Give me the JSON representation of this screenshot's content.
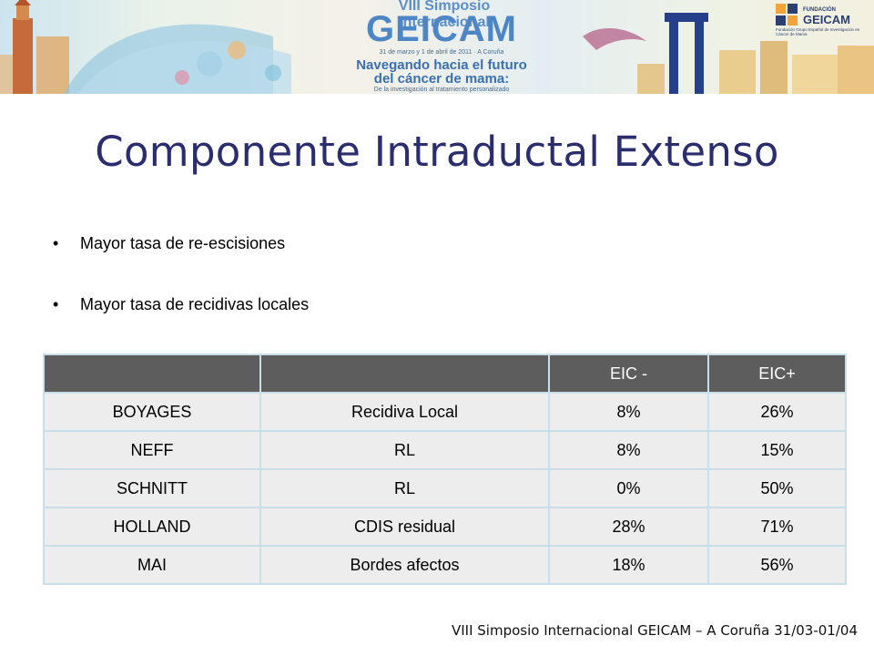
{
  "banner": {
    "sup": "VIII Simposio Internacional",
    "main": "GEICAM",
    "dates": "31 de marzo y 1 de abril de 2011 · A Coruña",
    "sub1": "Navegando hacia el futuro",
    "sub2": "del cáncer de mama:",
    "sub3": "De la investigación al tratamiento personalizado",
    "logo_top": "FUNDACIÓN",
    "logo_name": "GEICAM",
    "logo_desc": "Fundación Grupo Español de Investigación en Cáncer de Mama"
  },
  "title": "Componente Intraductal Extenso",
  "bullets": [
    "Mayor tasa de re-escisiones",
    "Mayor tasa de recidivas locales"
  ],
  "table": {
    "headers": [
      "",
      "",
      "EIC -",
      "EIC+"
    ],
    "rows": [
      [
        "BOYAGES",
        "Recidiva Local",
        "8%",
        "26%"
      ],
      [
        "NEFF",
        "RL",
        "8%",
        "15%"
      ],
      [
        "SCHNITT",
        "RL",
        "0%",
        "50%"
      ],
      [
        "HOLLAND",
        "CDIS residual",
        "28%",
        "71%"
      ],
      [
        "MAI",
        "Bordes afectos",
        "18%",
        "56%"
      ]
    ]
  },
  "footer": "VIII Simposio Internacional GEICAM – A Coruña 31/03-01/04",
  "colors": {
    "title": "#2a2d6e",
    "table_header_bg": "#5d5d5d",
    "table_row_bg": "#ededed",
    "table_border": "#c6dfe8",
    "banner_accent": "#4d86c6"
  }
}
